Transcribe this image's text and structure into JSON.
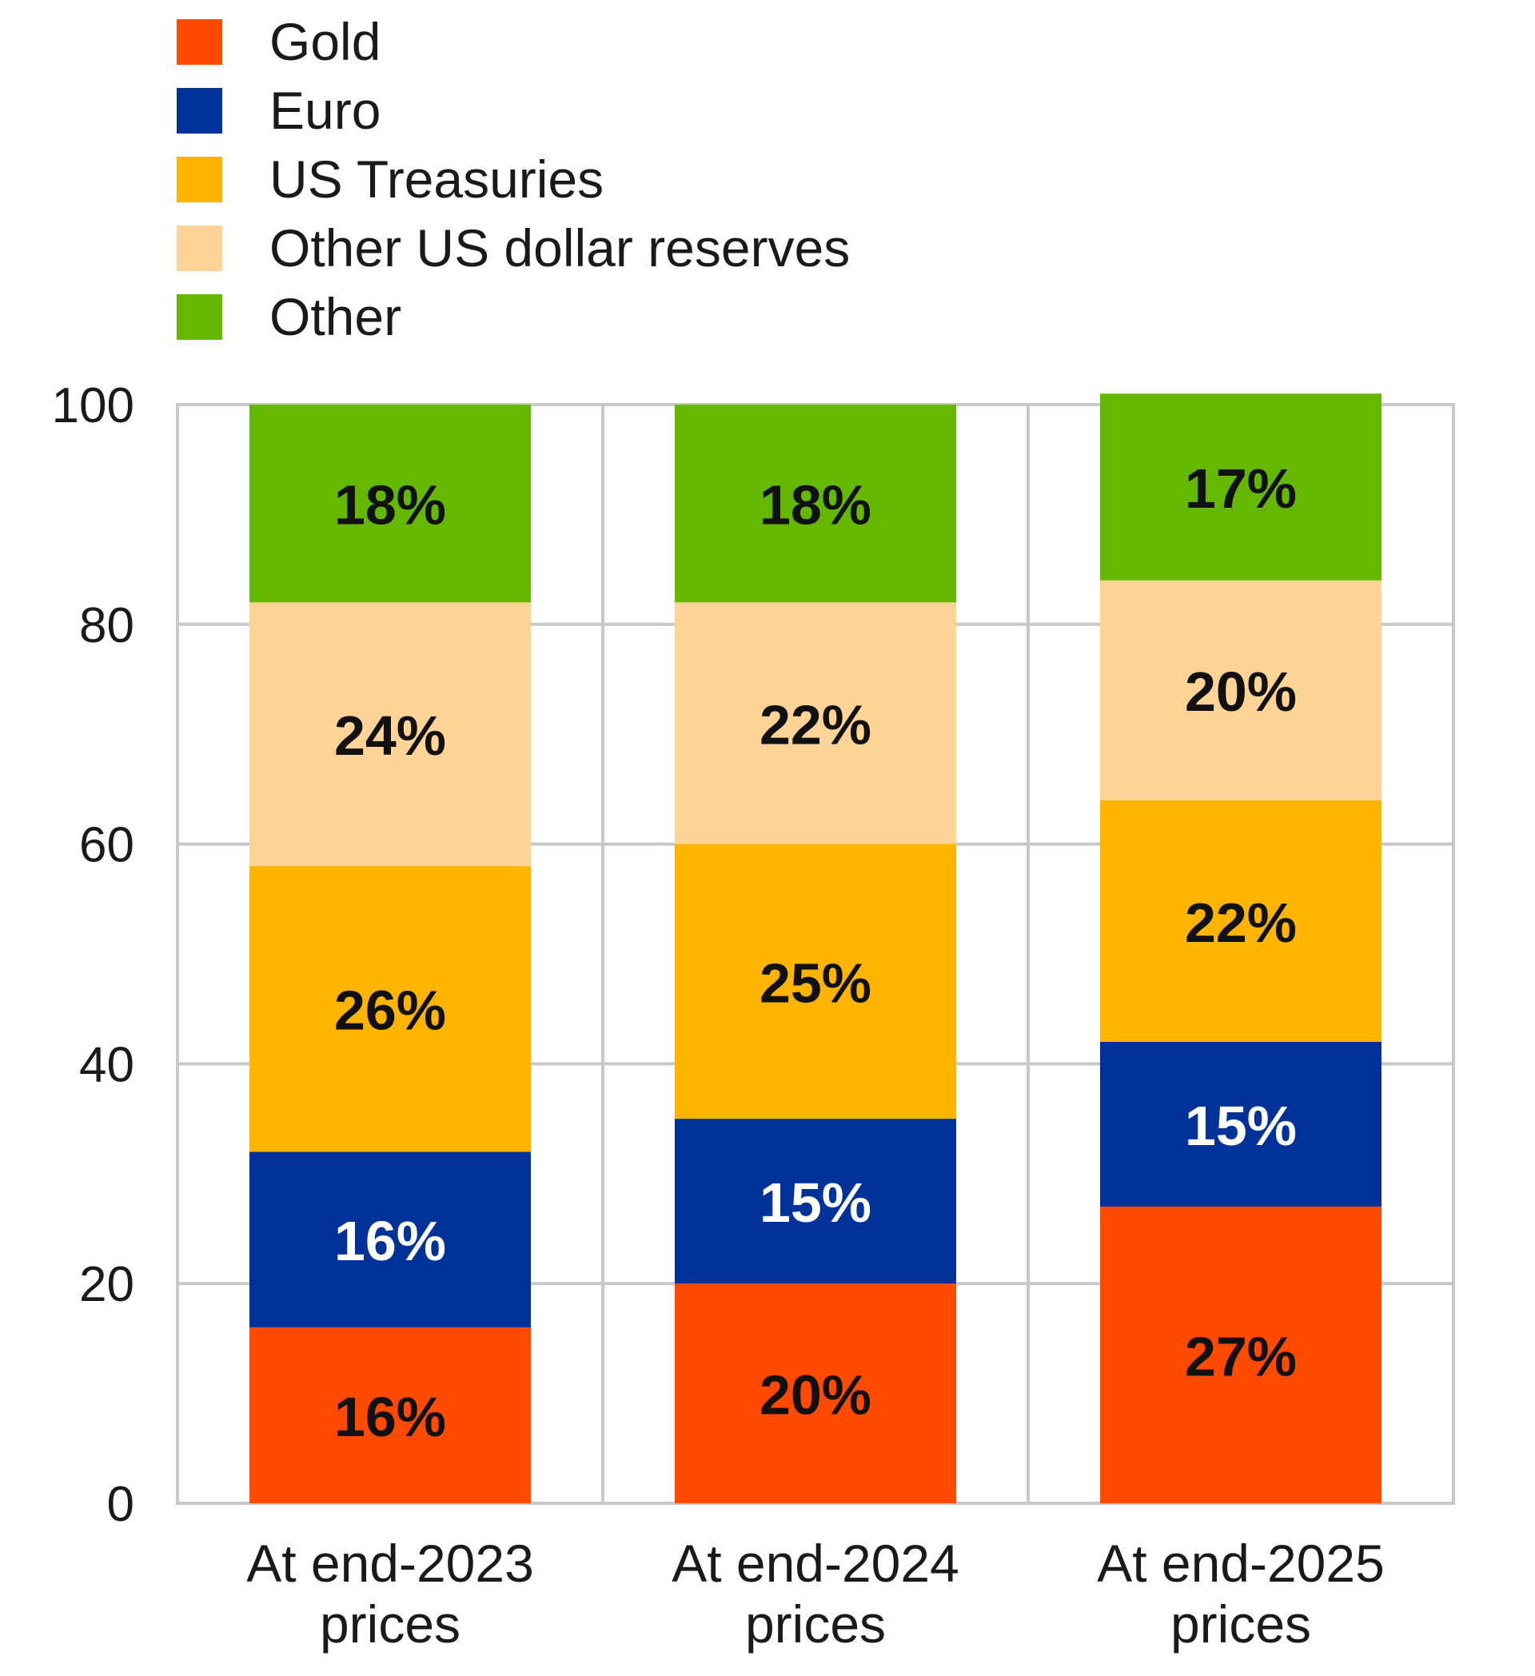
{
  "chart_data": {
    "type": "bar",
    "stacked": true,
    "title": "",
    "xlabel": "",
    "ylabel": "",
    "ylim": [
      0,
      100
    ],
    "y_ticks": [
      "0",
      "20",
      "40",
      "60",
      "80",
      "100"
    ],
    "grid": true,
    "legend_position": "top-left",
    "categories": [
      [
        "At end-2023",
        "prices"
      ],
      [
        "At end-2024",
        "prices"
      ],
      [
        "At end-2025",
        "prices"
      ]
    ],
    "series": [
      {
        "name": "Gold",
        "color": "#ff4a00",
        "values": [
          16,
          20,
          27
        ],
        "labels": [
          "16%",
          "20%",
          "27%"
        ],
        "label_color": "#111111"
      },
      {
        "name": "Euro",
        "color": "#003299",
        "values": [
          16,
          15,
          15
        ],
        "labels": [
          "16%",
          "15%",
          "15%"
        ],
        "label_color": "#ffffff"
      },
      {
        "name": "US Treasuries",
        "color": "#ffb400",
        "values": [
          26,
          25,
          22
        ],
        "labels": [
          "26%",
          "25%",
          "22%"
        ],
        "label_color": "#111111"
      },
      {
        "name": "Other US dollar reserves",
        "color": "#ffd496",
        "values": [
          24,
          22,
          20
        ],
        "labels": [
          "24%",
          "22%",
          "20%"
        ],
        "label_color": "#111111"
      },
      {
        "name": "Other",
        "color": "#65b800",
        "values": [
          18,
          18,
          17
        ],
        "labels": [
          "18%",
          "18%",
          "17%"
        ],
        "label_color": "#111111"
      }
    ]
  }
}
